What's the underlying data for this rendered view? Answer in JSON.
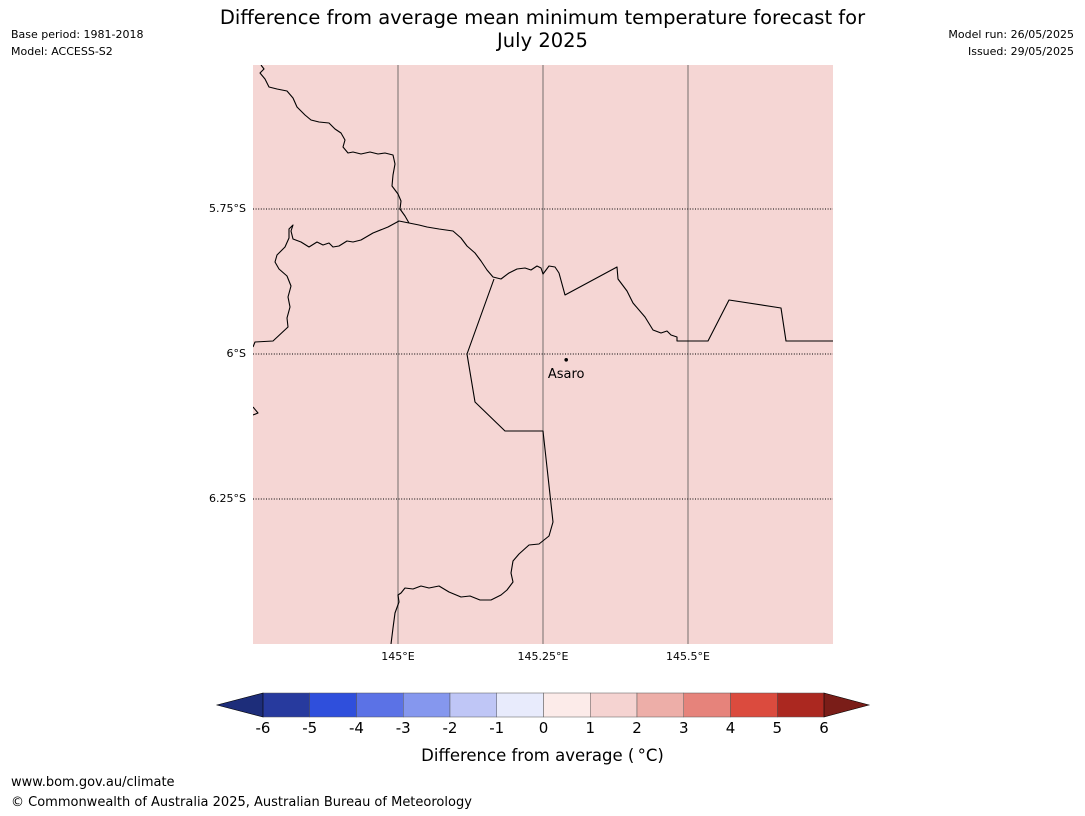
{
  "header": {
    "base_period": "Base period: 1981-2018",
    "model": "Model: ACCESS-S2",
    "title_line1": "Difference from average mean minimum temperature forecast for",
    "title_line2": "July 2025",
    "model_run": "Model run: 26/05/2025",
    "issued": "Issued: 29/05/2025"
  },
  "map": {
    "fill_color": "#f5d6d4",
    "lat_labels": [
      "5.75°S",
      "6°S",
      "6.25°S"
    ],
    "lon_labels": [
      "145°E",
      "145.25°E",
      "145.5°E"
    ],
    "place": {
      "name": "Asaro",
      "lon": 145.29,
      "lat": -6.01
    }
  },
  "colorbar": {
    "title": "Difference from average ( °C)",
    "tick_labels": [
      "-6",
      "-5",
      "-4",
      "-3",
      "-2",
      "-1",
      "0",
      "1",
      "2",
      "3",
      "4",
      "5",
      "6"
    ],
    "colors": [
      "#273a9e",
      "#2f4fdc",
      "#5b72e6",
      "#8597ee",
      "#bfc6f6",
      "#e8ebfc",
      "#fcebe9",
      "#f5d3d1",
      "#edaea8",
      "#e6837b",
      "#db4b3e",
      "#ab2820"
    ],
    "under_color": "#1d2d7a",
    "over_color": "#7a1d18"
  },
  "footer": {
    "url": "www.bom.gov.au/climate",
    "copyright": "© Commonwealth of Australia 2025, Australian Bureau of Meteorology"
  }
}
